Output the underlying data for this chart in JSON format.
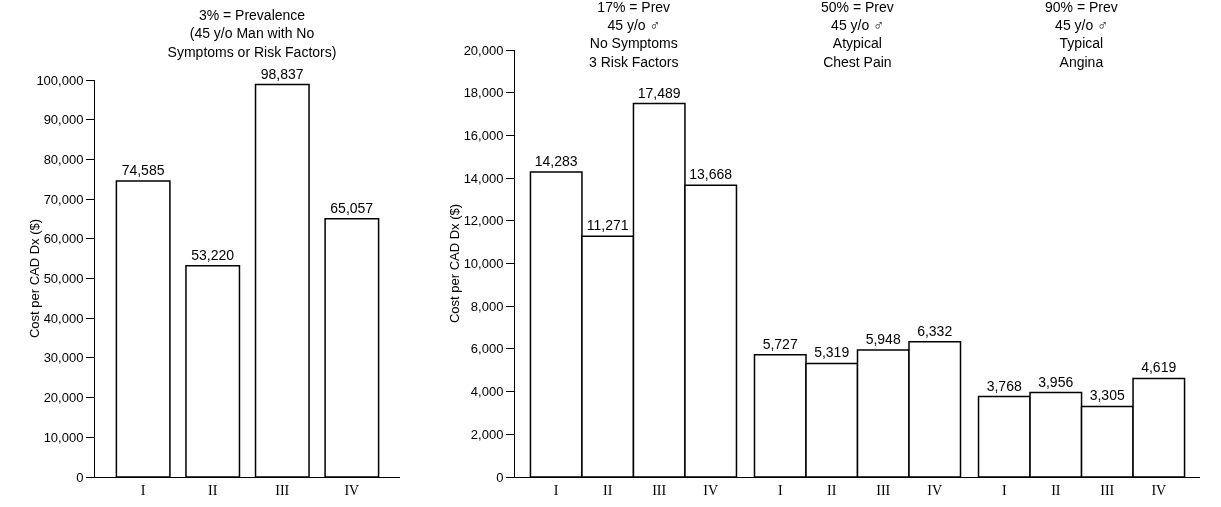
{
  "chart_data": [
    {
      "type": "bar",
      "title": "3% = Prevalence\n(45 y/o Man with No\nSymptoms or Risk Factors)",
      "ylabel": "Cost per CAD Dx ($)",
      "categories": [
        "I",
        "II",
        "III",
        "IV"
      ],
      "values": [
        74585,
        53220,
        98837,
        65057
      ],
      "color": "#ffffff",
      "ylim": [
        0,
        100000
      ],
      "yticks": [
        0,
        {
          "value": 10000,
          "label": "10,000"
        },
        {
          "value": 20000,
          "label": "20,000"
        },
        {
          "value": 30000,
          "label": "30,000"
        },
        {
          "value": 40000,
          "label": "40,000"
        },
        {
          "value": 50000,
          "label": "50,000"
        },
        {
          "value": 60000,
          "label": "60,000"
        },
        {
          "value": 70000,
          "label": "70,000"
        },
        {
          "value": 80000,
          "label": "80,000"
        },
        {
          "value": 90000,
          "label": "90,000"
        },
        {
          "value": 100000,
          "label": "100,000"
        }
      ],
      "grid": false,
      "legend": false,
      "value_labels": [
        "74,585",
        "53,220",
        "98,837",
        "65,057"
      ]
    },
    {
      "type": "bar",
      "ylabel": "Cost per CAD Dx ($)",
      "annotations": [
        "17% = Prev\n45 y/o ♂\nNo Symptoms\n3 Risk Factors",
        "50% = Prev\n45 y/o ♂\nAtypical\nChest Pain",
        "90% = Prev\n45 y/o ♂\nTypical\nAngina"
      ],
      "categories": [
        "I",
        "II",
        "III",
        "IV",
        "I",
        "II",
        "III",
        "IV",
        "I",
        "II",
        "III",
        "IV"
      ],
      "values": [
        14283,
        11271,
        17489,
        13668,
        5727,
        5319,
        5948,
        6332,
        3768,
        3956,
        3305,
        4619
      ],
      "color": "#ffffff",
      "ylim": [
        0,
        20000
      ],
      "yticks": [
        0,
        {
          "value": 2000,
          "label": "2,000"
        },
        {
          "value": 4000,
          "label": "4,000"
        },
        {
          "value": 6000,
          "label": "6,000"
        },
        {
          "value": 8000,
          "label": "8,000"
        },
        {
          "value": 10000,
          "label": "10,000"
        },
        {
          "value": 12000,
          "label": "12,000"
        },
        {
          "value": 14000,
          "label": "14,000"
        },
        {
          "value": 16000,
          "label": "16,000"
        },
        {
          "value": 18000,
          "label": "18,000"
        },
        {
          "value": 20000,
          "label": "20,000"
        }
      ],
      "grid": false,
      "legend": false,
      "value_labels": [
        "14,283",
        "11,271",
        "17,489",
        "13,668",
        "5,727",
        "5,319",
        "5,948",
        "6,332",
        "3,768",
        "3,956",
        "3,305",
        "4,619"
      ]
    }
  ]
}
